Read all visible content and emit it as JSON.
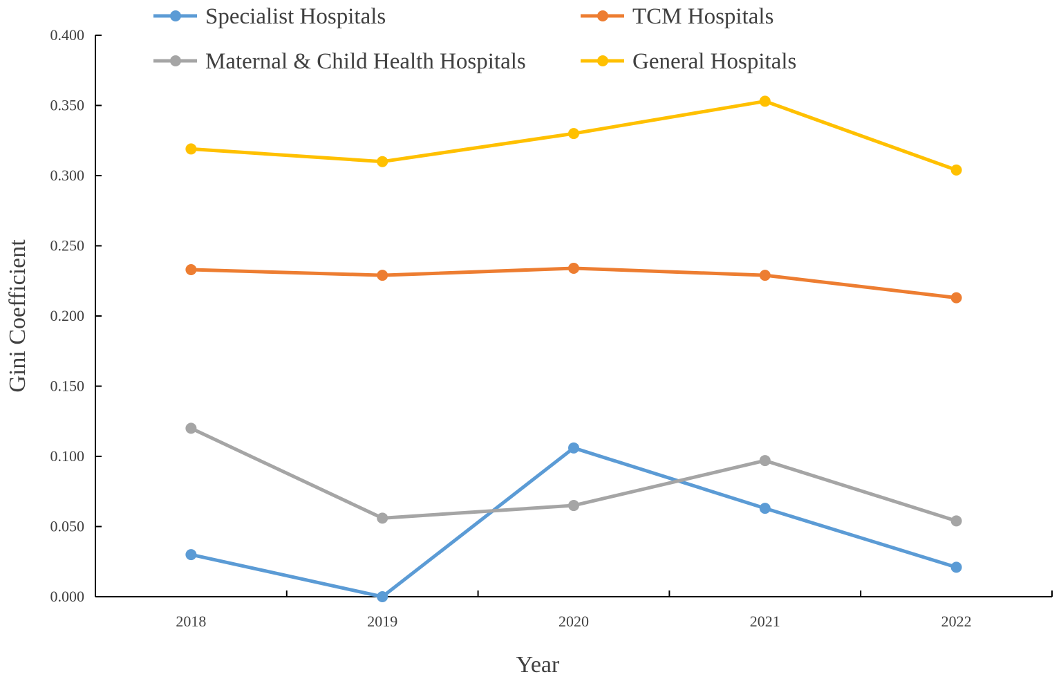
{
  "chart_data": {
    "type": "line",
    "title": "",
    "xlabel": "Year",
    "ylabel": "Gini Coefficient",
    "categories": [
      "2018",
      "2019",
      "2020",
      "2021",
      "2022"
    ],
    "ylim": [
      0,
      0.4
    ],
    "yticks": [
      "0.000",
      "0.050",
      "0.100",
      "0.150",
      "0.200",
      "0.250",
      "0.300",
      "0.350",
      "0.400"
    ],
    "grid": false,
    "legend_position": "top",
    "series": [
      {
        "name": "Specialist Hospitals",
        "color": "#5B9BD5",
        "values": [
          0.03,
          0.0,
          0.106,
          0.063,
          0.021
        ]
      },
      {
        "name": "TCM Hospitals",
        "color": "#ED7D31",
        "values": [
          0.233,
          0.229,
          0.234,
          0.229,
          0.213
        ]
      },
      {
        "name": "Maternal & Child Health Hospitals",
        "color": "#A5A5A5",
        "values": [
          0.12,
          0.056,
          0.065,
          0.097,
          0.054
        ]
      },
      {
        "name": "General Hospitals",
        "color": "#FFC000",
        "values": [
          0.319,
          0.31,
          0.33,
          0.353,
          0.304
        ]
      }
    ]
  }
}
